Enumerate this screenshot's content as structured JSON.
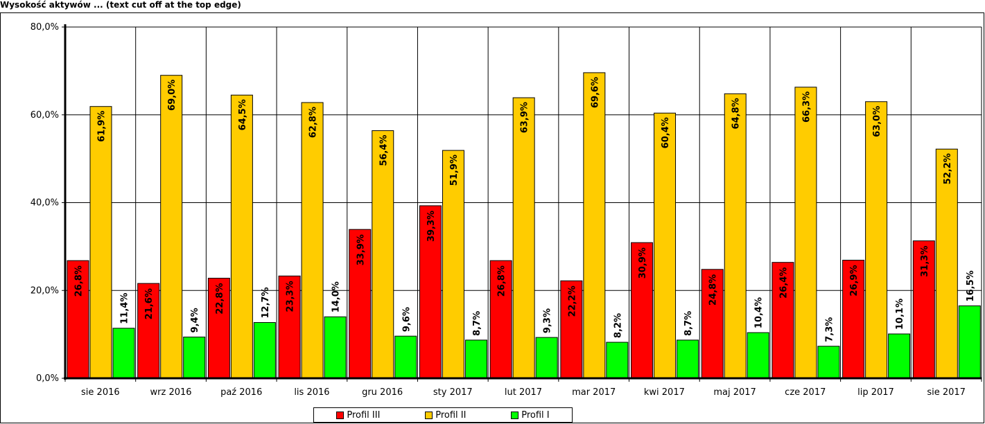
{
  "title": "Wysokość aktywów ... (text cut off at the top edge)",
  "chart_data": {
    "type": "bar",
    "categories": [
      "sie 2016",
      "wrz 2016",
      "paź 2016",
      "lis 2016",
      "gru 2016",
      "sty 2017",
      "lut 2017",
      "mar 2017",
      "kwi 2017",
      "maj 2017",
      "cze 2017",
      "lip 2017",
      "sie 2017"
    ],
    "series": [
      {
        "name": "Profil III",
        "color": "#ff0000",
        "values": [
          26.8,
          21.6,
          22.8,
          23.3,
          33.9,
          39.3,
          26.8,
          22.2,
          30.9,
          24.8,
          26.4,
          26.9,
          31.3
        ],
        "labels": [
          "26,8%",
          "21,6%",
          "22,8%",
          "23,3%",
          "33,9%",
          "39,3%",
          "26,8%",
          "22,2%",
          "30,9%",
          "24,8%",
          "26,4%",
          "26,9%",
          "31,3%"
        ]
      },
      {
        "name": "Profil II",
        "color": "#ffcc00",
        "values": [
          61.9,
          69.0,
          64.5,
          62.8,
          56.4,
          51.9,
          63.9,
          69.6,
          60.4,
          64.8,
          66.3,
          63.0,
          52.2
        ],
        "labels": [
          "61,9%",
          "69,0%",
          "64,5%",
          "62,8%",
          "56,4%",
          "51,9%",
          "63,9%",
          "69,6%",
          "60,4%",
          "64,8%",
          "66,3%",
          "63,0%",
          "52,2%"
        ]
      },
      {
        "name": "Profil I",
        "color": "#00ff00",
        "values": [
          11.4,
          9.4,
          12.7,
          14.0,
          9.6,
          8.7,
          9.3,
          8.2,
          8.7,
          10.4,
          7.3,
          10.1,
          16.5
        ],
        "labels": [
          "11,4%",
          "9,4%",
          "12,7%",
          "14,0%",
          "9,6%",
          "8,7%",
          "9,3%",
          "8,2%",
          "8,7%",
          "10,4%",
          "7,3%",
          "10,1%",
          "16,5%"
        ]
      }
    ],
    "yticks": [
      "0,0%",
      "20,0%",
      "40,0%",
      "60,0%",
      "80,0%"
    ],
    "ylim": [
      0,
      80
    ],
    "grid": true,
    "legend_position": "bottom"
  }
}
